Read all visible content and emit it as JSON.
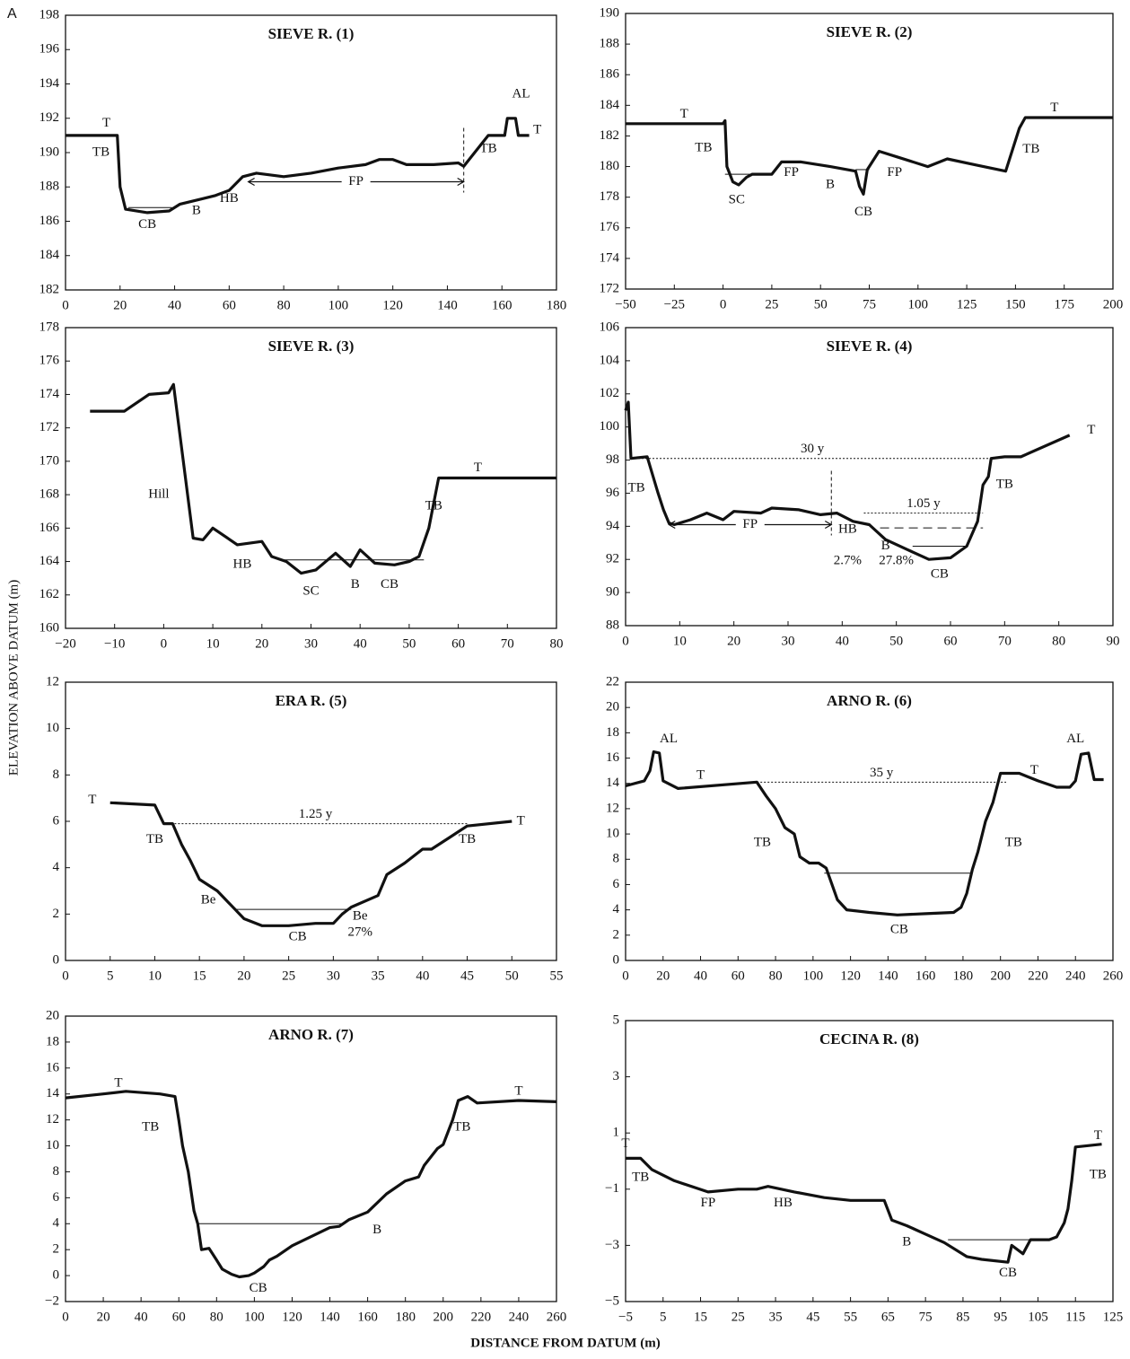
{
  "panel_label": "A",
  "y_axis_label": "ELEVATION  ABOVE DATUM (m)",
  "x_axis_label": "DISTANCE FROM DATUM (m)",
  "chart_data": [
    {
      "type": "line",
      "title": "SIEVE R. (1)",
      "color": "#111111",
      "x": [
        0,
        19,
        20,
        22,
        30,
        38,
        42,
        50,
        55,
        60,
        65,
        70,
        80,
        90,
        100,
        110,
        115,
        120,
        125,
        135,
        144,
        146,
        150,
        155,
        161,
        162,
        165,
        166,
        170
      ],
      "values": [
        191,
        191,
        188,
        186.7,
        186.5,
        186.6,
        187,
        187.3,
        187.5,
        187.8,
        188.6,
        188.8,
        188.6,
        188.8,
        189.1,
        189.3,
        189.6,
        189.6,
        189.3,
        189.3,
        189.4,
        189.2,
        190,
        191,
        191,
        192,
        192,
        191,
        191
      ],
      "xlim": [
        0,
        180
      ],
      "xticks": [
        0,
        20,
        40,
        60,
        80,
        100,
        120,
        140,
        160,
        180
      ],
      "ylim": [
        182,
        198
      ],
      "yticks": [
        182,
        184,
        186,
        188,
        190,
        192,
        194,
        196,
        198
      ],
      "levels": [
        {
          "y": 186.8,
          "x": [
            23,
            39
          ],
          "style": "solid"
        }
      ],
      "spans": [
        {
          "label": "FP",
          "x": [
            67,
            146
          ],
          "y": 188.3
        }
      ],
      "annotations": [
        {
          "text": "T",
          "x": 15,
          "y": 191.7
        },
        {
          "text": "TB",
          "x": 13,
          "y": 190
        },
        {
          "text": "CB",
          "x": 30,
          "y": 185.8
        },
        {
          "text": "B",
          "x": 48,
          "y": 186.6
        },
        {
          "text": "HB",
          "x": 60,
          "y": 187.3
        },
        {
          "text": "TB",
          "x": 155,
          "y": 190.2
        },
        {
          "text": "AL",
          "x": 167,
          "y": 193.4
        },
        {
          "text": "T",
          "x": 173,
          "y": 191.3
        }
      ]
    },
    {
      "type": "line",
      "title": "SIEVE R. (2)",
      "color": "#111111",
      "x": [
        -50,
        0,
        1,
        2,
        5,
        8,
        12,
        15,
        25,
        30,
        40,
        55,
        68,
        70,
        72,
        74,
        80,
        90,
        105,
        115,
        130,
        145,
        152,
        155,
        200
      ],
      "values": [
        182.8,
        182.8,
        183,
        180,
        179,
        178.8,
        179.3,
        179.5,
        179.5,
        180.3,
        180.3,
        180,
        179.7,
        178.7,
        178.2,
        179.8,
        181,
        180.6,
        180,
        180.5,
        180.1,
        179.7,
        182.5,
        183.2,
        183.2
      ],
      "xlim": [
        -50,
        200
      ],
      "xticks": [
        {
          "value": -50,
          "label": "−50"
        },
        {
          "value": -25,
          "label": "−25"
        },
        0,
        25,
        50,
        75,
        100,
        125,
        150,
        175,
        200
      ],
      "ylim": [
        172,
        190
      ],
      "yticks": [
        172,
        174,
        176,
        178,
        180,
        182,
        184,
        186,
        188,
        190
      ],
      "levels": [
        {
          "y": 179.5,
          "x": [
            1,
            14
          ],
          "style": "solid"
        },
        {
          "y": 179.8,
          "x": [
            68,
            75
          ],
          "style": "solid"
        }
      ],
      "spans": [],
      "annotations": [
        {
          "text": "T",
          "x": -20,
          "y": 183.4
        },
        {
          "text": "TB",
          "x": -10,
          "y": 181.2
        },
        {
          "text": "SC",
          "x": 7,
          "y": 177.8
        },
        {
          "text": "FP",
          "x": 35,
          "y": 179.6
        },
        {
          "text": "B",
          "x": 55,
          "y": 178.8
        },
        {
          "text": "CB",
          "x": 72,
          "y": 177
        },
        {
          "text": "FP",
          "x": 88,
          "y": 179.6
        },
        {
          "text": "TB",
          "x": 158,
          "y": 181.1
        },
        {
          "text": "T",
          "x": 170,
          "y": 183.8
        }
      ]
    },
    {
      "type": "line",
      "title": "SIEVE R. (3)",
      "color": "#111111",
      "x": [
        -15,
        -8,
        -3,
        1,
        2,
        6,
        8,
        10,
        15,
        20,
        22,
        25,
        28,
        31,
        35,
        38,
        40,
        43,
        47,
        50,
        52,
        54,
        56,
        80
      ],
      "values": [
        173,
        173,
        174,
        174.1,
        174.6,
        165.4,
        165.3,
        166,
        165,
        165.2,
        164.3,
        164,
        163.3,
        163.5,
        164.5,
        163.7,
        164.7,
        163.9,
        163.8,
        164,
        164.3,
        166,
        169,
        169
      ],
      "xlim": [
        -20,
        80
      ],
      "xticks": [
        {
          "value": -20,
          "label": "−20"
        },
        {
          "value": -10,
          "label": "−10"
        },
        0,
        10,
        20,
        30,
        40,
        50,
        60,
        70,
        80
      ],
      "ylim": [
        160,
        178
      ],
      "yticks": [
        160,
        162,
        164,
        166,
        168,
        170,
        172,
        174,
        176,
        178
      ],
      "levels": [
        {
          "y": 164.1,
          "x": [
            24,
            53
          ],
          "style": "solid"
        }
      ],
      "spans": [],
      "annotations": [
        {
          "text": "Hill",
          "x": -1,
          "y": 168
        },
        {
          "text": "HB",
          "x": 16,
          "y": 163.8
        },
        {
          "text": "SC",
          "x": 30,
          "y": 162.2
        },
        {
          "text": "B",
          "x": 39,
          "y": 162.6
        },
        {
          "text": "CB",
          "x": 46,
          "y": 162.6
        },
        {
          "text": "TB",
          "x": 55,
          "y": 167.3
        },
        {
          "text": "T",
          "x": 64,
          "y": 169.6
        }
      ]
    },
    {
      "type": "line",
      "title": "SIEVE R. (4)",
      "color": "#111111",
      "x": [
        0,
        0.5,
        1,
        4,
        6,
        7,
        8,
        9,
        12,
        15,
        18,
        20,
        25,
        27,
        32,
        36,
        39,
        42,
        45,
        48,
        52,
        56,
        60,
        63,
        65,
        66,
        67,
        67.5,
        70,
        73,
        82
      ],
      "values": [
        101,
        101.5,
        98.1,
        98.2,
        96,
        95,
        94.2,
        94.1,
        94.4,
        94.8,
        94.4,
        94.9,
        94.8,
        95.1,
        95,
        94.7,
        94.8,
        94.3,
        94.1,
        93.2,
        92.6,
        92,
        92.1,
        92.8,
        94.3,
        96.5,
        97,
        98.1,
        98.2,
        98.2,
        99.5
      ],
      "xlim": [
        0,
        90
      ],
      "xticks": [
        0,
        10,
        20,
        30,
        40,
        50,
        60,
        70,
        80,
        90
      ],
      "ylim": [
        88,
        106
      ],
      "yticks": [
        88,
        90,
        92,
        94,
        96,
        98,
        100,
        102,
        104,
        106
      ],
      "levels": [
        {
          "y": 98.1,
          "x": [
            1,
            68
          ],
          "style": "dotted",
          "label": "30 y"
        },
        {
          "y": 94.8,
          "x": [
            44,
            66
          ],
          "style": "dotted",
          "label": "1.05 y"
        },
        {
          "y": 93.9,
          "x": [
            47,
            66
          ],
          "style": "dashed"
        },
        {
          "y": 92.8,
          "x": [
            53,
            63
          ],
          "style": "solid"
        }
      ],
      "spans": [
        {
          "label": "FP",
          "x": [
            8,
            38
          ],
          "y": 94.1
        }
      ],
      "annotations": [
        {
          "text": "T",
          "x": 86,
          "y": 99.8
        },
        {
          "text": "TB",
          "x": 2,
          "y": 96.3
        },
        {
          "text": "TB",
          "x": 70,
          "y": 96.5
        },
        {
          "text": "HB",
          "x": 41,
          "y": 93.8
        },
        {
          "text": "B",
          "x": 48,
          "y": 92.8
        },
        {
          "text": "2.7%",
          "x": 41,
          "y": 91.9
        },
        {
          "text": "27.8%",
          "x": 50,
          "y": 91.9
        },
        {
          "text": "CB",
          "x": 58,
          "y": 91.1
        }
      ]
    },
    {
      "type": "line",
      "title": "ERA R. (5)",
      "color": "#111111",
      "x": [
        5,
        10,
        11,
        12,
        13,
        14,
        15,
        17,
        19,
        20,
        22,
        25,
        28,
        30,
        31,
        32,
        35,
        36,
        38,
        40,
        41,
        43,
        45,
        50
      ],
      "values": [
        6.8,
        6.7,
        5.9,
        5.9,
        5,
        4.3,
        3.5,
        3,
        2.2,
        1.8,
        1.5,
        1.5,
        1.6,
        1.6,
        2,
        2.3,
        2.8,
        3.7,
        4.2,
        4.8,
        4.8,
        5.3,
        5.8,
        6
      ],
      "xlim": [
        0,
        55
      ],
      "xticks": [
        0,
        5,
        10,
        15,
        20,
        25,
        30,
        35,
        40,
        45,
        50,
        55
      ],
      "ylim": [
        0,
        12
      ],
      "yticks": [
        0,
        2,
        4,
        6,
        8,
        10,
        12
      ],
      "levels": [
        {
          "y": 5.9,
          "x": [
            11,
            45
          ],
          "style": "dotted",
          "label": "1.25 y"
        },
        {
          "y": 2.2,
          "x": [
            19,
            32
          ],
          "style": "solid"
        }
      ],
      "spans": [],
      "annotations": [
        {
          "text": "T",
          "x": 3,
          "y": 6.9
        },
        {
          "text": "TB",
          "x": 10,
          "y": 5.2
        },
        {
          "text": "Be",
          "x": 16,
          "y": 2.6
        },
        {
          "text": "Be",
          "x": 33,
          "y": 1.9
        },
        {
          "text": "27%",
          "x": 33,
          "y": 1.2
        },
        {
          "text": "CB",
          "x": 26,
          "y": 1
        },
        {
          "text": "TB",
          "x": 45,
          "y": 5.2
        },
        {
          "text": "T",
          "x": 51,
          "y": 6
        }
      ]
    },
    {
      "type": "line",
      "title": "ARNO R. (6)",
      "color": "#111111",
      "x": [
        0,
        10,
        13,
        15,
        18,
        20,
        28,
        70,
        75,
        80,
        85,
        90,
        93,
        98,
        103,
        107,
        113,
        118,
        130,
        145,
        160,
        175,
        179,
        182,
        185,
        188,
        192,
        196,
        200,
        210,
        220,
        230,
        237,
        240,
        243,
        247,
        250,
        255
      ],
      "values": [
        13.8,
        14.2,
        15,
        16.5,
        16.4,
        14.2,
        13.6,
        14.1,
        13,
        12,
        10.5,
        10,
        8.2,
        7.7,
        7.7,
        7.3,
        4.8,
        4,
        3.8,
        3.6,
        3.7,
        3.8,
        4.2,
        5.3,
        7.2,
        8.6,
        11,
        12.5,
        14.8,
        14.8,
        14.2,
        13.7,
        13.7,
        14.2,
        16.3,
        16.4,
        14.3,
        14.3
      ],
      "xlim": [
        0,
        260
      ],
      "xticks": [
        0,
        20,
        40,
        60,
        80,
        100,
        120,
        140,
        160,
        180,
        200,
        220,
        240,
        260
      ],
      "ylim": [
        0,
        22
      ],
      "yticks": [
        0,
        2,
        4,
        6,
        8,
        10,
        12,
        14,
        16,
        18,
        20,
        22
      ],
      "levels": [
        {
          "y": 14.1,
          "x": [
            70,
            203
          ],
          "style": "dotted",
          "label": "35 y"
        },
        {
          "y": 6.9,
          "x": [
            106,
            184
          ],
          "style": "solid"
        }
      ],
      "spans": [],
      "annotations": [
        {
          "text": "AL",
          "x": 23,
          "y": 17.5
        },
        {
          "text": "T",
          "x": 40,
          "y": 14.6
        },
        {
          "text": "TB",
          "x": 73,
          "y": 9.3
        },
        {
          "text": "CB",
          "x": 146,
          "y": 2.4
        },
        {
          "text": "TB",
          "x": 207,
          "y": 9.3
        },
        {
          "text": "T",
          "x": 218,
          "y": 15
        },
        {
          "text": "AL",
          "x": 240,
          "y": 17.5
        }
      ]
    },
    {
      "type": "line",
      "title": "ARNO R. (7)",
      "color": "#111111",
      "x": [
        0,
        20,
        32,
        50,
        58,
        60,
        62,
        65,
        68,
        70,
        72,
        76,
        80,
        83,
        88,
        92,
        97,
        100,
        105,
        108,
        112,
        120,
        130,
        140,
        145,
        150,
        160,
        170,
        180,
        187,
        190,
        197,
        200,
        205,
        208,
        213,
        218,
        240,
        260
      ],
      "values": [
        13.7,
        14,
        14.2,
        14,
        13.8,
        12,
        10,
        8,
        5,
        4,
        2,
        2.1,
        1.2,
        0.5,
        0.1,
        -0.1,
        0,
        0.2,
        0.7,
        1.2,
        1.5,
        2.3,
        3,
        3.7,
        3.8,
        4.3,
        4.9,
        6.3,
        7.3,
        7.6,
        8.5,
        9.8,
        10.1,
        12,
        13.5,
        13.8,
        13.3,
        13.5,
        13.4
      ],
      "xlim": [
        0,
        260
      ],
      "xticks": [
        0,
        20,
        40,
        60,
        80,
        100,
        120,
        140,
        160,
        180,
        200,
        220,
        240,
        260
      ],
      "ylim": [
        -2,
        20
      ],
      "yticks": [
        {
          "value": -2,
          "label": "−2"
        },
        0,
        2,
        4,
        6,
        8,
        10,
        12,
        14,
        16,
        18,
        20
      ],
      "levels": [
        {
          "y": 4,
          "x": [
            70,
            148
          ],
          "style": "solid"
        }
      ],
      "spans": [],
      "annotations": [
        {
          "text": "T",
          "x": 28,
          "y": 14.8
        },
        {
          "text": "TB",
          "x": 45,
          "y": 11.4
        },
        {
          "text": "B",
          "x": 165,
          "y": 3.5
        },
        {
          "text": "CB",
          "x": 102,
          "y": -1
        },
        {
          "text": "TB",
          "x": 210,
          "y": 11.4
        },
        {
          "text": "T",
          "x": 240,
          "y": 14.2
        }
      ]
    },
    {
      "type": "line",
      "title": "CECINA R. (8)",
      "color": "#111111",
      "x": [
        -5,
        -1,
        2,
        8,
        17,
        25,
        30,
        33,
        40,
        48,
        55,
        62,
        64,
        66,
        70,
        75,
        80,
        86,
        90,
        97,
        98,
        101,
        103,
        108,
        110,
        112,
        113,
        114,
        115,
        122
      ],
      "values": [
        0.1,
        0.1,
        -0.3,
        -0.7,
        -1.1,
        -1,
        -1,
        -0.9,
        -1.1,
        -1.3,
        -1.4,
        -1.4,
        -1.4,
        -2.1,
        -2.3,
        -2.6,
        -2.9,
        -3.4,
        -3.5,
        -3.6,
        -3,
        -3.3,
        -2.8,
        -2.8,
        -2.7,
        -2.2,
        -1.7,
        -0.7,
        0.5,
        0.6
      ],
      "xlim": [
        -5,
        125
      ],
      "xticks": [
        {
          "value": -5,
          "label": "−5"
        },
        5,
        15,
        25,
        35,
        45,
        55,
        65,
        75,
        85,
        95,
        105,
        115,
        125
      ],
      "ylim": [
        -5,
        5
      ],
      "yticks": [
        {
          "value": -5,
          "label": "−5"
        },
        {
          "value": -3,
          "label": "−3"
        },
        {
          "value": -1,
          "label": "−1"
        },
        1,
        3,
        5
      ],
      "levels": [
        {
          "y": -2.8,
          "x": [
            81,
            103
          ],
          "style": "solid"
        }
      ],
      "spans": [],
      "annotations": [
        {
          "text": "T",
          "x": -5,
          "y": 0.6
        },
        {
          "text": "TB",
          "x": -1,
          "y": -0.6
        },
        {
          "text": "FP",
          "x": 17,
          "y": -1.5
        },
        {
          "text": "HB",
          "x": 37,
          "y": -1.5
        },
        {
          "text": "B",
          "x": 70,
          "y": -2.9
        },
        {
          "text": "CB",
          "x": 97,
          "y": -4
        },
        {
          "text": "T",
          "x": 121,
          "y": 0.9
        },
        {
          "text": "TB",
          "x": 121,
          "y": -0.5
        }
      ]
    }
  ]
}
